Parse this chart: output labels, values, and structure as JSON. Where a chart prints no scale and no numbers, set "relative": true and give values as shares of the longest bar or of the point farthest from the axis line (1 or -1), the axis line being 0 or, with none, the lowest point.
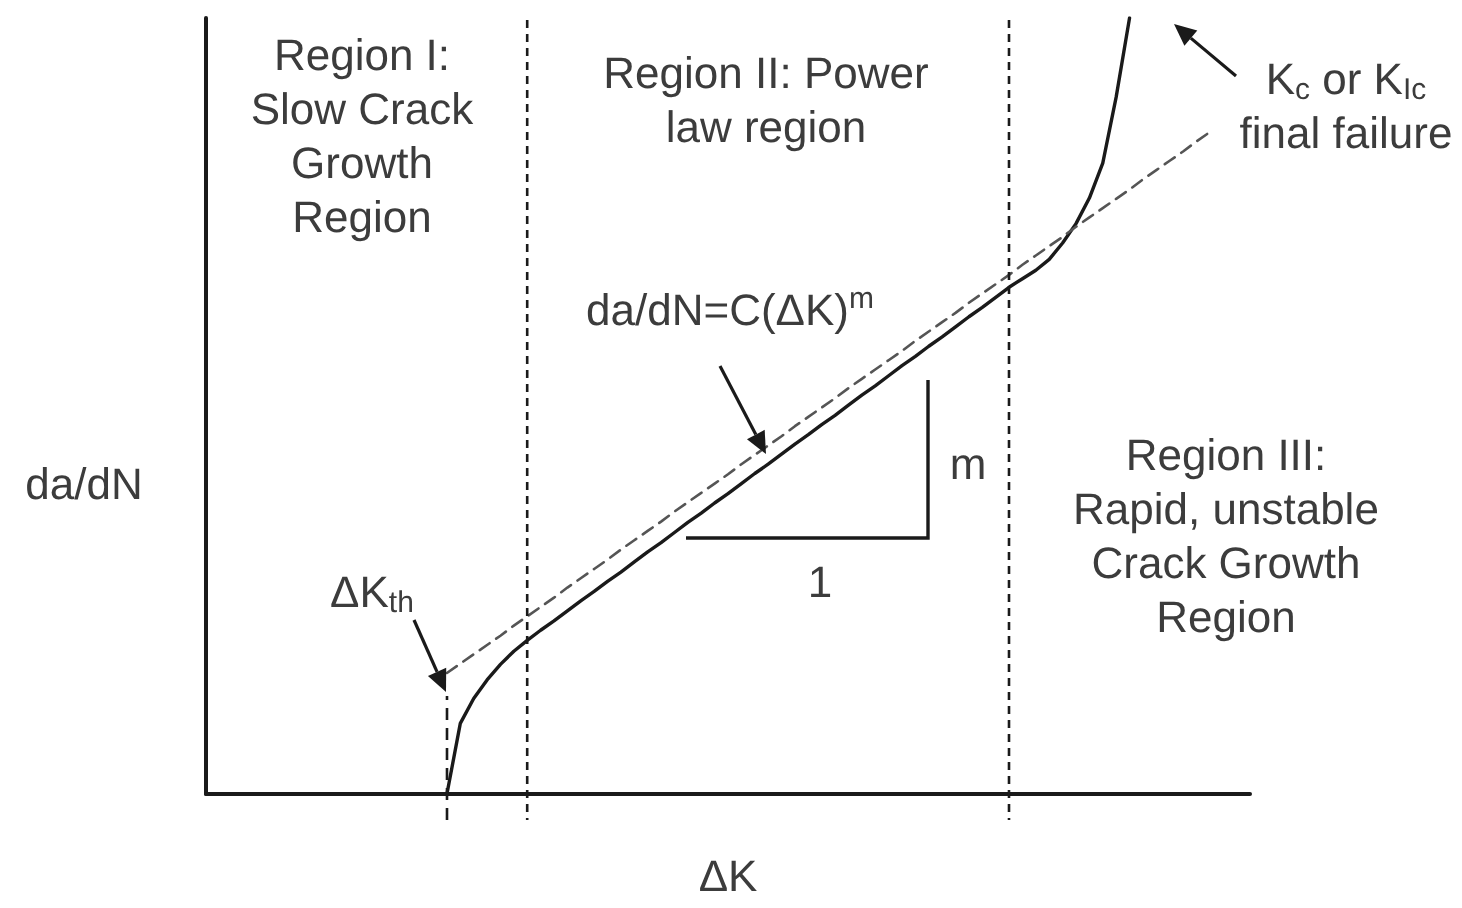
{
  "chart_data": {
    "type": "line",
    "relative": true,
    "xlabel": "ΔK",
    "ylabel": "da/dN",
    "grid": false,
    "marker": "none",
    "categories": [
      null,
      null,
      null,
      null,
      null,
      null,
      null,
      null,
      null,
      null,
      null,
      null,
      null,
      null,
      null,
      null,
      null,
      null,
      null,
      null,
      null,
      null,
      null,
      null,
      null,
      null,
      null,
      null,
      null,
      null,
      null,
      null,
      null,
      null,
      null,
      null,
      null,
      null,
      null,
      null,
      null,
      null,
      null,
      null,
      null,
      null,
      null,
      null,
      null,
      null,
      null,
      null,
      null,
      null,
      null,
      null,
      null,
      null,
      null,
      null,
      null,
      null,
      null,
      null,
      null,
      null,
      null,
      null,
      null,
      null,
      null,
      null,
      null,
      null,
      null,
      null,
      null,
      null,
      null
    ],
    "series": [
      {
        "color": "#1a1a1a",
        "line_style": "solid",
        "values": [
          null,
          null,
          null,
          null,
          null,
          null,
          null,
          null,
          null,
          null,
          null,
          null,
          null,
          null,
          null,
          null,
          null,
          null,
          0,
          0.091,
          0.123,
          0.147,
          0.167,
          0.184,
          0.198,
          0.211,
          0.223,
          0.236,
          0.249,
          0.261,
          0.274,
          0.286,
          0.299,
          0.312,
          0.324,
          0.337,
          0.35,
          0.362,
          0.375,
          0.387,
          0.4,
          0.413,
          0.425,
          0.438,
          0.451,
          0.463,
          0.476,
          0.488,
          0.501,
          0.514,
          0.526,
          0.539,
          0.552,
          0.564,
          0.577,
          0.589,
          0.602,
          0.615,
          0.627,
          0.64,
          0.653,
          0.664,
          0.675,
          0.689,
          0.71,
          0.735,
          0.768,
          0.813,
          0.898,
          1.0,
          null,
          null,
          null,
          null,
          null,
          null,
          null,
          null,
          null
        ]
      },
      {
        "color": "#555555",
        "line_style": "dashed",
        "values": [
          null,
          null,
          null,
          null,
          null,
          null,
          null,
          null,
          null,
          null,
          null,
          null,
          null,
          null,
          null,
          null,
          null,
          null,
          0.156,
          0.168,
          0.18,
          0.192,
          0.204,
          0.217,
          0.229,
          0.241,
          0.253,
          0.266,
          0.278,
          0.29,
          0.302,
          0.315,
          0.327,
          0.339,
          0.351,
          0.364,
          0.376,
          0.388,
          0.4,
          0.412,
          0.425,
          0.437,
          0.449,
          0.461,
          0.474,
          0.486,
          0.498,
          0.51,
          0.523,
          0.535,
          0.547,
          0.559,
          0.571,
          0.584,
          0.596,
          0.608,
          0.62,
          0.633,
          0.645,
          0.657,
          0.669,
          0.682,
          0.694,
          0.706,
          0.718,
          0.731,
          0.743,
          0.755,
          0.767,
          0.779,
          0.792,
          0.804,
          0.816,
          0.828,
          0.841,
          0.853,
          null,
          null,
          null
        ]
      }
    ],
    "annotations": [
      "Region I:\nSlow Crack\nGrowth\nRegion",
      "Region II: Power\nlaw region",
      "Region III:\nRapid, unstable\nCrack Growth\nRegion",
      "da/dN=C(ΔK)$^{m}$",
      "K$_{c}$ or K$_{Ic}$\nfinal failure",
      "ΔK$_{th}$",
      "m",
      "1"
    ]
  }
}
